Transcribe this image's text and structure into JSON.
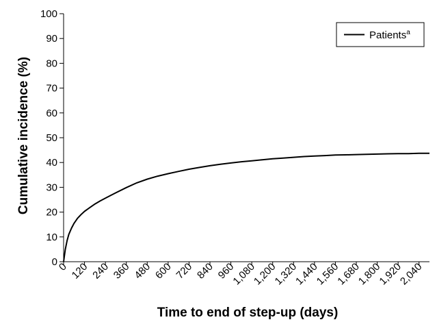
{
  "chart_data": {
    "type": "line",
    "title": "",
    "xlabel": "Time to end of step-up (days)",
    "ylabel": "Cumulative incidence (%)",
    "xlim": [
      0,
      2100
    ],
    "ylim": [
      0,
      100
    ],
    "x_ticks": [
      0,
      120,
      240,
      360,
      480,
      600,
      720,
      840,
      960,
      1080,
      1200,
      1320,
      1440,
      1560,
      1680,
      1800,
      1920,
      2040
    ],
    "x_tick_labels": [
      "0",
      "120",
      "240",
      "360",
      "480",
      "600",
      "720",
      "840",
      "960",
      "1,080",
      "1,200",
      "1,320",
      "1,440",
      "1,560",
      "1,680",
      "1,800",
      "1,920",
      "2,040"
    ],
    "y_ticks": [
      0,
      10,
      20,
      30,
      40,
      50,
      60,
      70,
      80,
      90,
      100
    ],
    "y_tick_labels": [
      "0",
      "10",
      "20",
      "30",
      "40",
      "50",
      "60",
      "70",
      "80",
      "90",
      "100"
    ],
    "grid": false,
    "legend": {
      "position": "top-right",
      "label_main": "Patients",
      "label_sup": "a"
    },
    "series": [
      {
        "name": "Patientsa",
        "color": "#000000",
        "x": [
          0,
          10,
          20,
          30,
          45,
          60,
          80,
          100,
          120,
          150,
          180,
          210,
          240,
          270,
          300,
          360,
          420,
          480,
          540,
          600,
          660,
          720,
          780,
          840,
          900,
          960,
          1020,
          1080,
          1140,
          1200,
          1260,
          1320,
          1380,
          1440,
          1500,
          1560,
          1620,
          1680,
          1740,
          1800,
          1860,
          1920,
          1980,
          2040,
          2100
        ],
        "y": [
          0,
          5,
          8.5,
          11,
          13.5,
          15.5,
          17.5,
          19,
          20.3,
          21.8,
          23.3,
          24.5,
          25.6,
          26.7,
          27.8,
          29.9,
          31.8,
          33.3,
          34.5,
          35.5,
          36.4,
          37.3,
          38,
          38.7,
          39.3,
          39.8,
          40.3,
          40.7,
          41.1,
          41.5,
          41.8,
          42.1,
          42.4,
          42.6,
          42.8,
          43,
          43.1,
          43.2,
          43.3,
          43.4,
          43.5,
          43.6,
          43.6,
          43.7,
          43.7
        ]
      }
    ]
  }
}
